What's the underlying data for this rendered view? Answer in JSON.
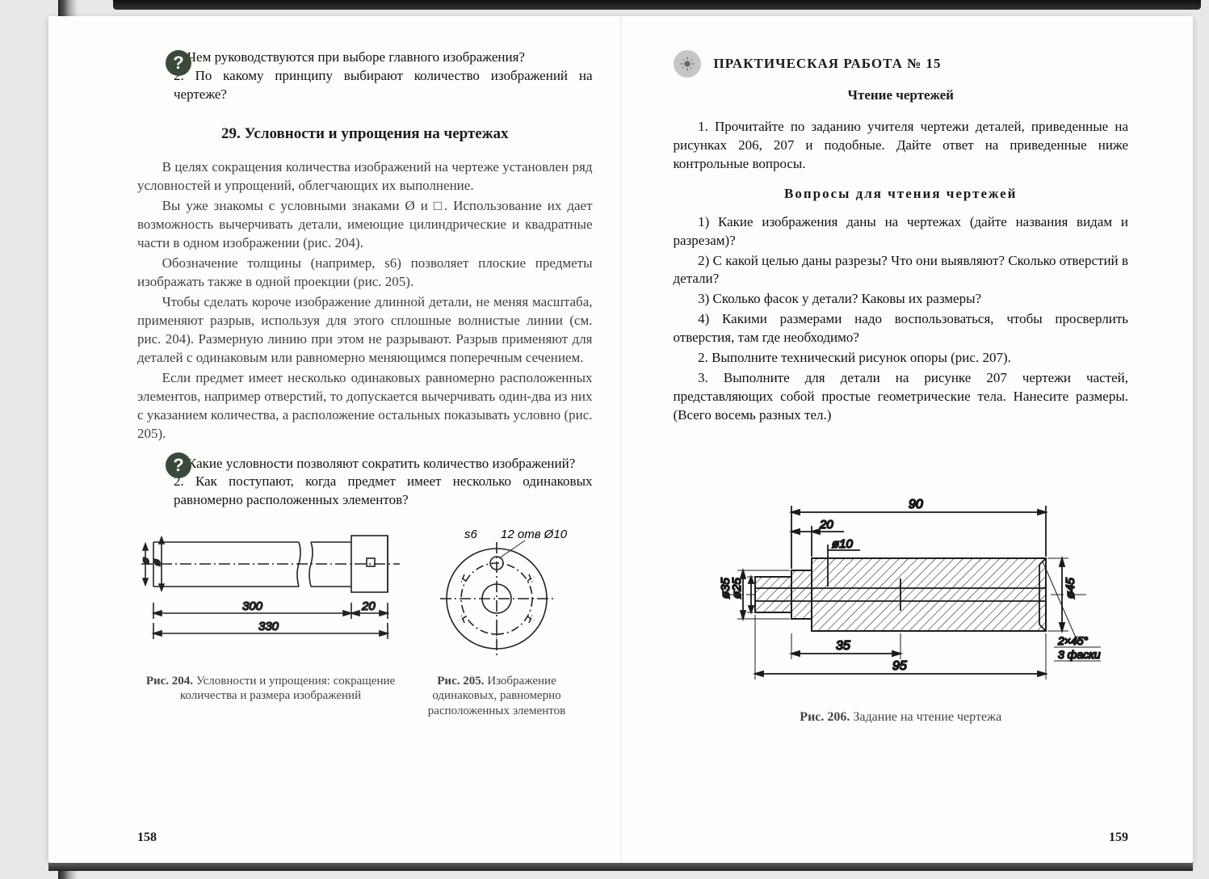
{
  "left": {
    "intro_questions": "1. Чем руководствуются при выборе главного изображения?\n2. По какому принципу выбирают количество изображений на чертеже?",
    "section_title": "29. Условности и упрощения на чертежах",
    "p1": "В целях сокращения количества изображений на чертеже установлен ряд условностей и упрощений, облегчающих их выполнение.",
    "p2": "Вы уже знакомы с условными знаками Ø и □. Использование их дает возможность вычерчивать детали, имеющие цилиндрические и квадратные части в одном изображении (рис. 204).",
    "p3": "Обозначение толщины (например, s6) позволяет плоские предметы изображать также в одной проекции (рис. 205).",
    "p4": "Чтобы сделать короче изображение длинной детали, не меняя масштаба, применяют разрыв, используя для этого сплошные волнистые линии (см. рис. 204). Размерную линию при этом не разрывают. Разрыв применяют для деталей с одинаковым или равномерно меняющимся поперечным сечением.",
    "p5": "Если предмет имеет несколько одинаковых равномерно расположенных элементов, например отверстий, то допускается вычерчивать один-два из них с указанием количества, а расположение остальных показывать условно (рис. 205).",
    "q_block": "1. Какие условности позволяют сократить количество изображений?\n2. Как поступают, когда предмет имеет несколько одинаковых равномерно расположенных элементов?",
    "fig204_cap": "Рис. 204. Условности и упрощения: сокращение количества и размера изображений",
    "fig205_cap": "Рис. 205. Изображение одинаковых, равномерно расположенных элементов",
    "fig204": {
      "len_total": "330",
      "len_main": "300",
      "len_end": "20"
    },
    "fig205": {
      "thickness": "s6",
      "holes": "12 отв Ø10"
    },
    "page_num": "158"
  },
  "right": {
    "work_title": "ПРАКТИЧЕСКАЯ РАБОТА № 15",
    "subtitle": "Чтение чертежей",
    "task1": "1. Прочитайте по заданию учителя чертежи деталей, приведенные на рисунках 206, 207 и подобные. Дайте ответ на приведенные ниже контрольные вопросы.",
    "qhdr": "Вопросы для чтения чертежей",
    "q1": "1) Какие изображения даны на чертежах (дайте названия видам и разрезам)?",
    "q2": "2) С какой целью даны разрезы? Что они выявляют? Сколько отверстий в детали?",
    "q3": "3) Сколько фасок у детали? Каковы их размеры?",
    "q4": "4) Какими размерами надо воспользоваться, чтобы просверлить отверстия, там где необходимо?",
    "t2": "2. Выполните технический рисунок опоры (рис. 207).",
    "t3": "3. Выполните для детали на рисунке 207 чертежи частей, представляющих собой простые геометрические тела. Нанесите размеры. (Всего восемь разных тел.)",
    "fig206_cap": "Рис. 206. Задание на чтение чертежа",
    "fig206": {
      "dim_90": "90",
      "dim_20": "20",
      "dim_d10": "ø10",
      "dim_d35": "ø35",
      "dim_d25": "ø25",
      "dim_d45": "ø45",
      "dim_35": "35",
      "dim_95": "95",
      "chamfer1": "2×45°",
      "chamfer2": "3 фаски"
    },
    "page_num": "159"
  },
  "colors": {
    "hatch": "#2a2a2a",
    "line": "#1a1a1a"
  }
}
